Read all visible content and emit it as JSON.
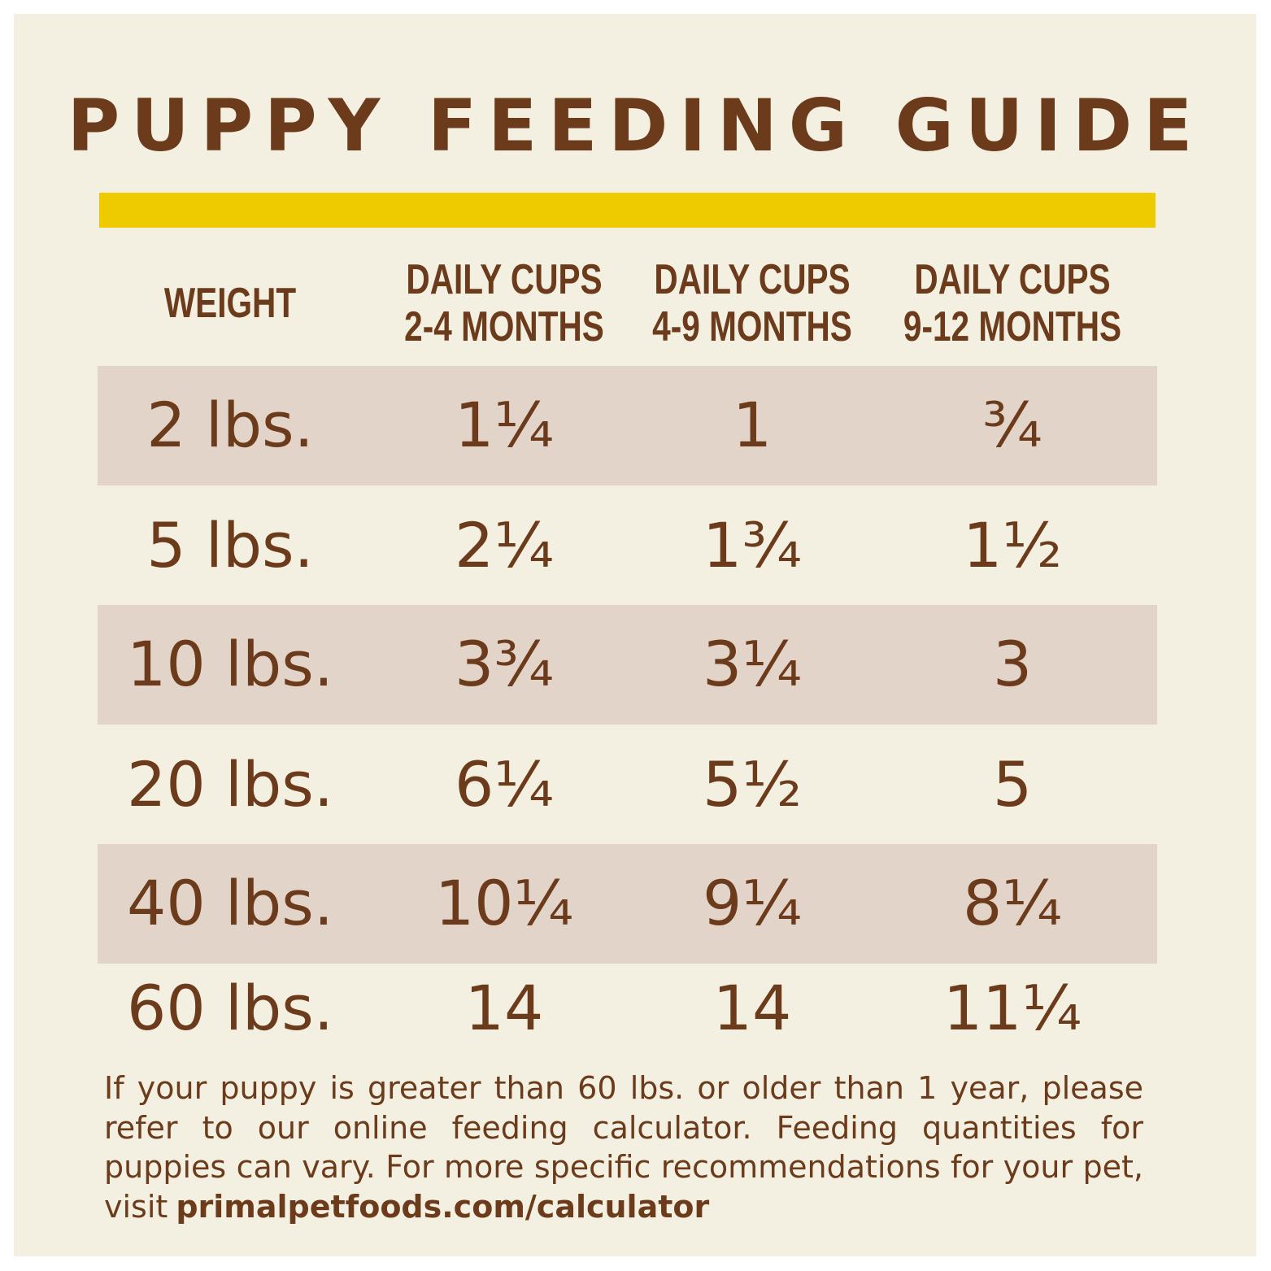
{
  "header": {
    "title": "PUPPY FEEDING GUIDE"
  },
  "table": {
    "columns": [
      [
        "WEIGHT"
      ],
      [
        "DAILY CUPS",
        "2-4 MONTHS"
      ],
      [
        "DAILY CUPS",
        "4-9 MONTHS"
      ],
      [
        "DAILY CUPS",
        "9-12 MONTHS"
      ]
    ],
    "rows": [
      [
        "2 lbs.",
        "1¼",
        "1",
        "¾"
      ],
      [
        "5 lbs.",
        "2¼",
        "1¾",
        "1½"
      ],
      [
        "10 lbs.",
        "3¾",
        "3¼",
        "3"
      ],
      [
        "20 lbs.",
        "6¼",
        "5½",
        "5"
      ],
      [
        "40 lbs.",
        "10¼",
        "9¼",
        "8¼"
      ],
      [
        "60 lbs.",
        "14",
        "14",
        "11¼"
      ]
    ]
  },
  "footnote": {
    "text": "If your puppy is greater than 60 lbs. or older than 1 year, please refer to our online feeding calculator. Feeding quantities for puppies can vary. For more specific recommendations for your pet, visit",
    "link": "primalpetfoods.com/calculator"
  }
}
